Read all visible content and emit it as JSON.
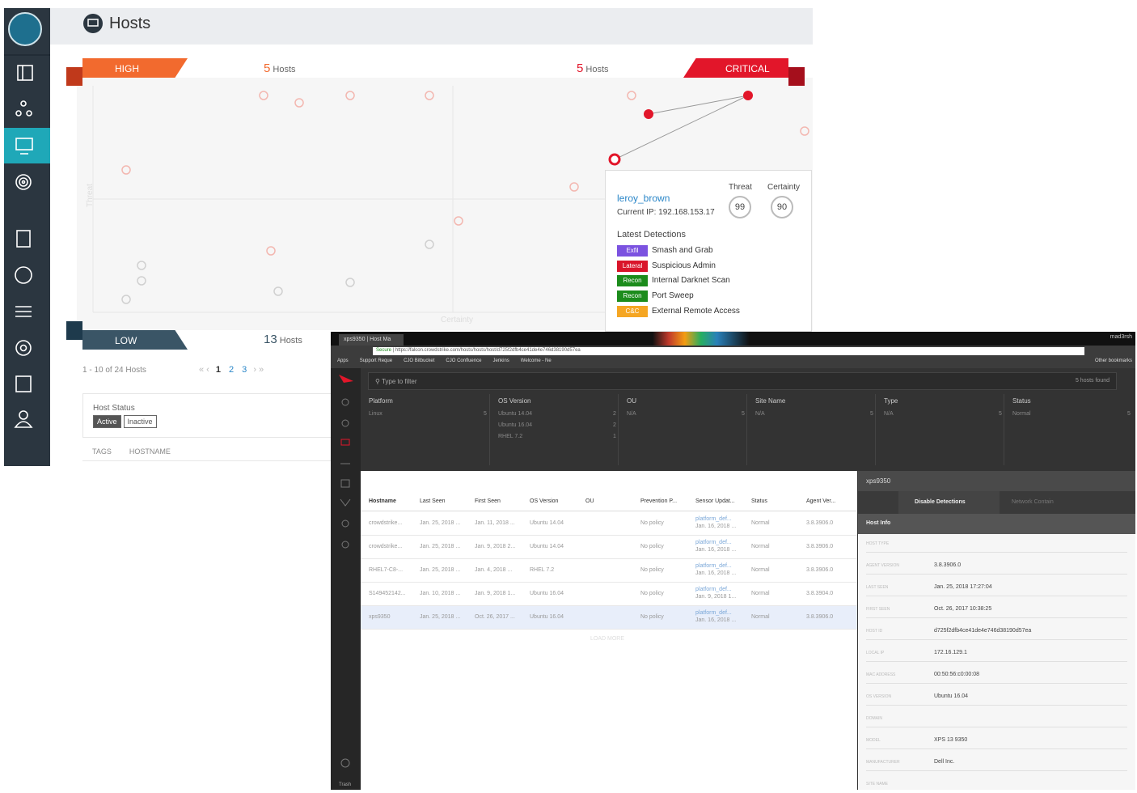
{
  "header": {
    "title": "Hosts"
  },
  "quadrants": {
    "high": {
      "label": "HIGH",
      "count": 5,
      "unit": "Hosts"
    },
    "critical": {
      "label": "CRITICAL",
      "count": 5,
      "unit": "Hosts"
    },
    "low": {
      "label": "LOW",
      "count": 13,
      "unit": "Hosts"
    },
    "y_axis": "Threat",
    "x_axis": "Certainty"
  },
  "popup": {
    "hostname": "leroy_brown",
    "ip": "Current IP: 192.168.153.17",
    "threat_label": "Threat",
    "threat": 99,
    "certainty_label": "Certainty",
    "certainty": 90,
    "detections_title": "Latest Detections",
    "detections": [
      {
        "tag": "Exfil",
        "color": "#7b52e0",
        "name": "Smash and Grab"
      },
      {
        "tag": "Lateral",
        "color": "#d9152a",
        "name": "Suspicious Admin"
      },
      {
        "tag": "Recon",
        "color": "#1c8c1c",
        "name": "Internal Darknet Scan"
      },
      {
        "tag": "Recon",
        "color": "#1c8c1c",
        "name": "Port Sweep"
      },
      {
        "tag": "C&C",
        "color": "#f5a623",
        "name": "External Remote Access"
      }
    ]
  },
  "pagination": {
    "summary": "1 - 10 of 24 Hosts",
    "pages": [
      "1",
      "2",
      "3"
    ]
  },
  "host_status": {
    "title": "Host Status",
    "options": [
      "Active",
      "Inactive"
    ]
  },
  "list_columns": [
    "TAGS",
    "HOSTNAME"
  ],
  "browser": {
    "tab": "xps9350 | Host Ma",
    "secure": "Secure",
    "url": "https://falcon.crowdstrike.com/hosts/hosts/host/d725f2dfb4ce41de4e746d38190d57ea",
    "bookmarks": [
      "Apps",
      "Support Reque",
      "CJO Bitbucket",
      "CJO Confluence",
      "Jenkins",
      "Welcome - Ne"
    ],
    "other_bookmarks": "Other bookmarks",
    "profile": "mad3rsh"
  },
  "nav": {
    "trash": "Trash"
  },
  "filter": {
    "placeholder": "Type to filter",
    "found": "5 hosts found"
  },
  "facets": [
    {
      "title": "Platform",
      "items": [
        {
          "name": "Linux",
          "count": 5
        }
      ]
    },
    {
      "title": "OS Version",
      "items": [
        {
          "name": "Ubuntu 14.04",
          "count": 2
        },
        {
          "name": "Ubuntu 16.04",
          "count": 2
        },
        {
          "name": "RHEL 7.2",
          "count": 1
        }
      ]
    },
    {
      "title": "OU",
      "items": [
        {
          "name": "N/A",
          "count": 5
        }
      ]
    },
    {
      "title": "Site Name",
      "items": [
        {
          "name": "N/A",
          "count": 5
        }
      ]
    },
    {
      "title": "Type",
      "items": [
        {
          "name": "N/A",
          "count": 5
        }
      ]
    },
    {
      "title": "Status",
      "items": [
        {
          "name": "Normal",
          "count": 5
        }
      ]
    }
  ],
  "table": {
    "columns": [
      "Hostname",
      "Last Seen",
      "First Seen",
      "OS Version",
      "OU",
      "Prevention P...",
      "Sensor Updat...",
      "Status",
      "Agent Ver..."
    ],
    "rows": [
      {
        "hostname": "crowdstrike...",
        "last_seen": "Jan. 25, 2018 ...",
        "first_seen": "Jan. 11, 2018 ...",
        "os": "Ubuntu 14.04",
        "prevention": "No policy",
        "sensor": "platform_def...",
        "sensor_date": "Jan. 16, 2018 ...",
        "status": "Normal",
        "agent": "3.8.3906.0"
      },
      {
        "hostname": "crowdstrike...",
        "last_seen": "Jan. 25, 2018 ...",
        "first_seen": "Jan. 9, 2018 2...",
        "os": "Ubuntu 14.04",
        "prevention": "No policy",
        "sensor": "platform_def...",
        "sensor_date": "Jan. 16, 2018 ...",
        "status": "Normal",
        "agent": "3.8.3906.0"
      },
      {
        "hostname": "RHEL7-C8-...",
        "last_seen": "Jan. 25, 2018 ...",
        "first_seen": "Jan. 4, 2018 ...",
        "os": "RHEL 7.2",
        "prevention": "No policy",
        "sensor": "platform_def...",
        "sensor_date": "Jan. 16, 2018 ...",
        "status": "Normal",
        "agent": "3.8.3906.0"
      },
      {
        "hostname": "S149452142...",
        "last_seen": "Jan. 10, 2018 ...",
        "first_seen": "Jan. 9, 2018 1...",
        "os": "Ubuntu 16.04",
        "prevention": "No policy",
        "sensor": "platform_def...",
        "sensor_date": "Jan. 9, 2018 1...",
        "status": "Normal",
        "agent": "3.8.3904.0"
      },
      {
        "hostname": "xps9350",
        "last_seen": "Jan. 25, 2018 ...",
        "first_seen": "Oct. 26, 2017 ...",
        "os": "Ubuntu 16.04",
        "prevention": "No policy",
        "sensor": "platform_def...",
        "sensor_date": "Jan. 16, 2018 ...",
        "status": "Normal",
        "agent": "3.8.3906.0"
      }
    ],
    "load_more": "LOAD MORE"
  },
  "detail": {
    "hostname": "xps9350",
    "actions": [
      "Disable Detections",
      "Network Contain"
    ],
    "section": "Host Info",
    "fields": [
      {
        "label": "HOST TYPE"
      },
      {
        "label": "AGENT VERSION",
        "value": "3.8.3906.0"
      },
      {
        "label": "LAST SEEN",
        "value": "Jan. 25, 2018 17:27:04"
      },
      {
        "label": "FIRST SEEN",
        "value": "Oct. 26, 2017 10:38:25"
      },
      {
        "label": "HOST ID",
        "value": "d725f2dfb4ce41de4e746d38190d57ea"
      },
      {
        "label": "LOCAL IP",
        "value": "172.16.129.1"
      },
      {
        "label": "MAC ADDRESS",
        "value": "00:50:56:c0:00:08"
      },
      {
        "label": "OS VERSION",
        "value": "Ubuntu 16.04"
      },
      {
        "label": "DOMAIN"
      },
      {
        "label": "MODEL",
        "value": "XPS 13 9350"
      },
      {
        "label": "MANUFACTURER",
        "value": "Dell Inc."
      },
      {
        "label": "SITE NAME"
      }
    ]
  }
}
